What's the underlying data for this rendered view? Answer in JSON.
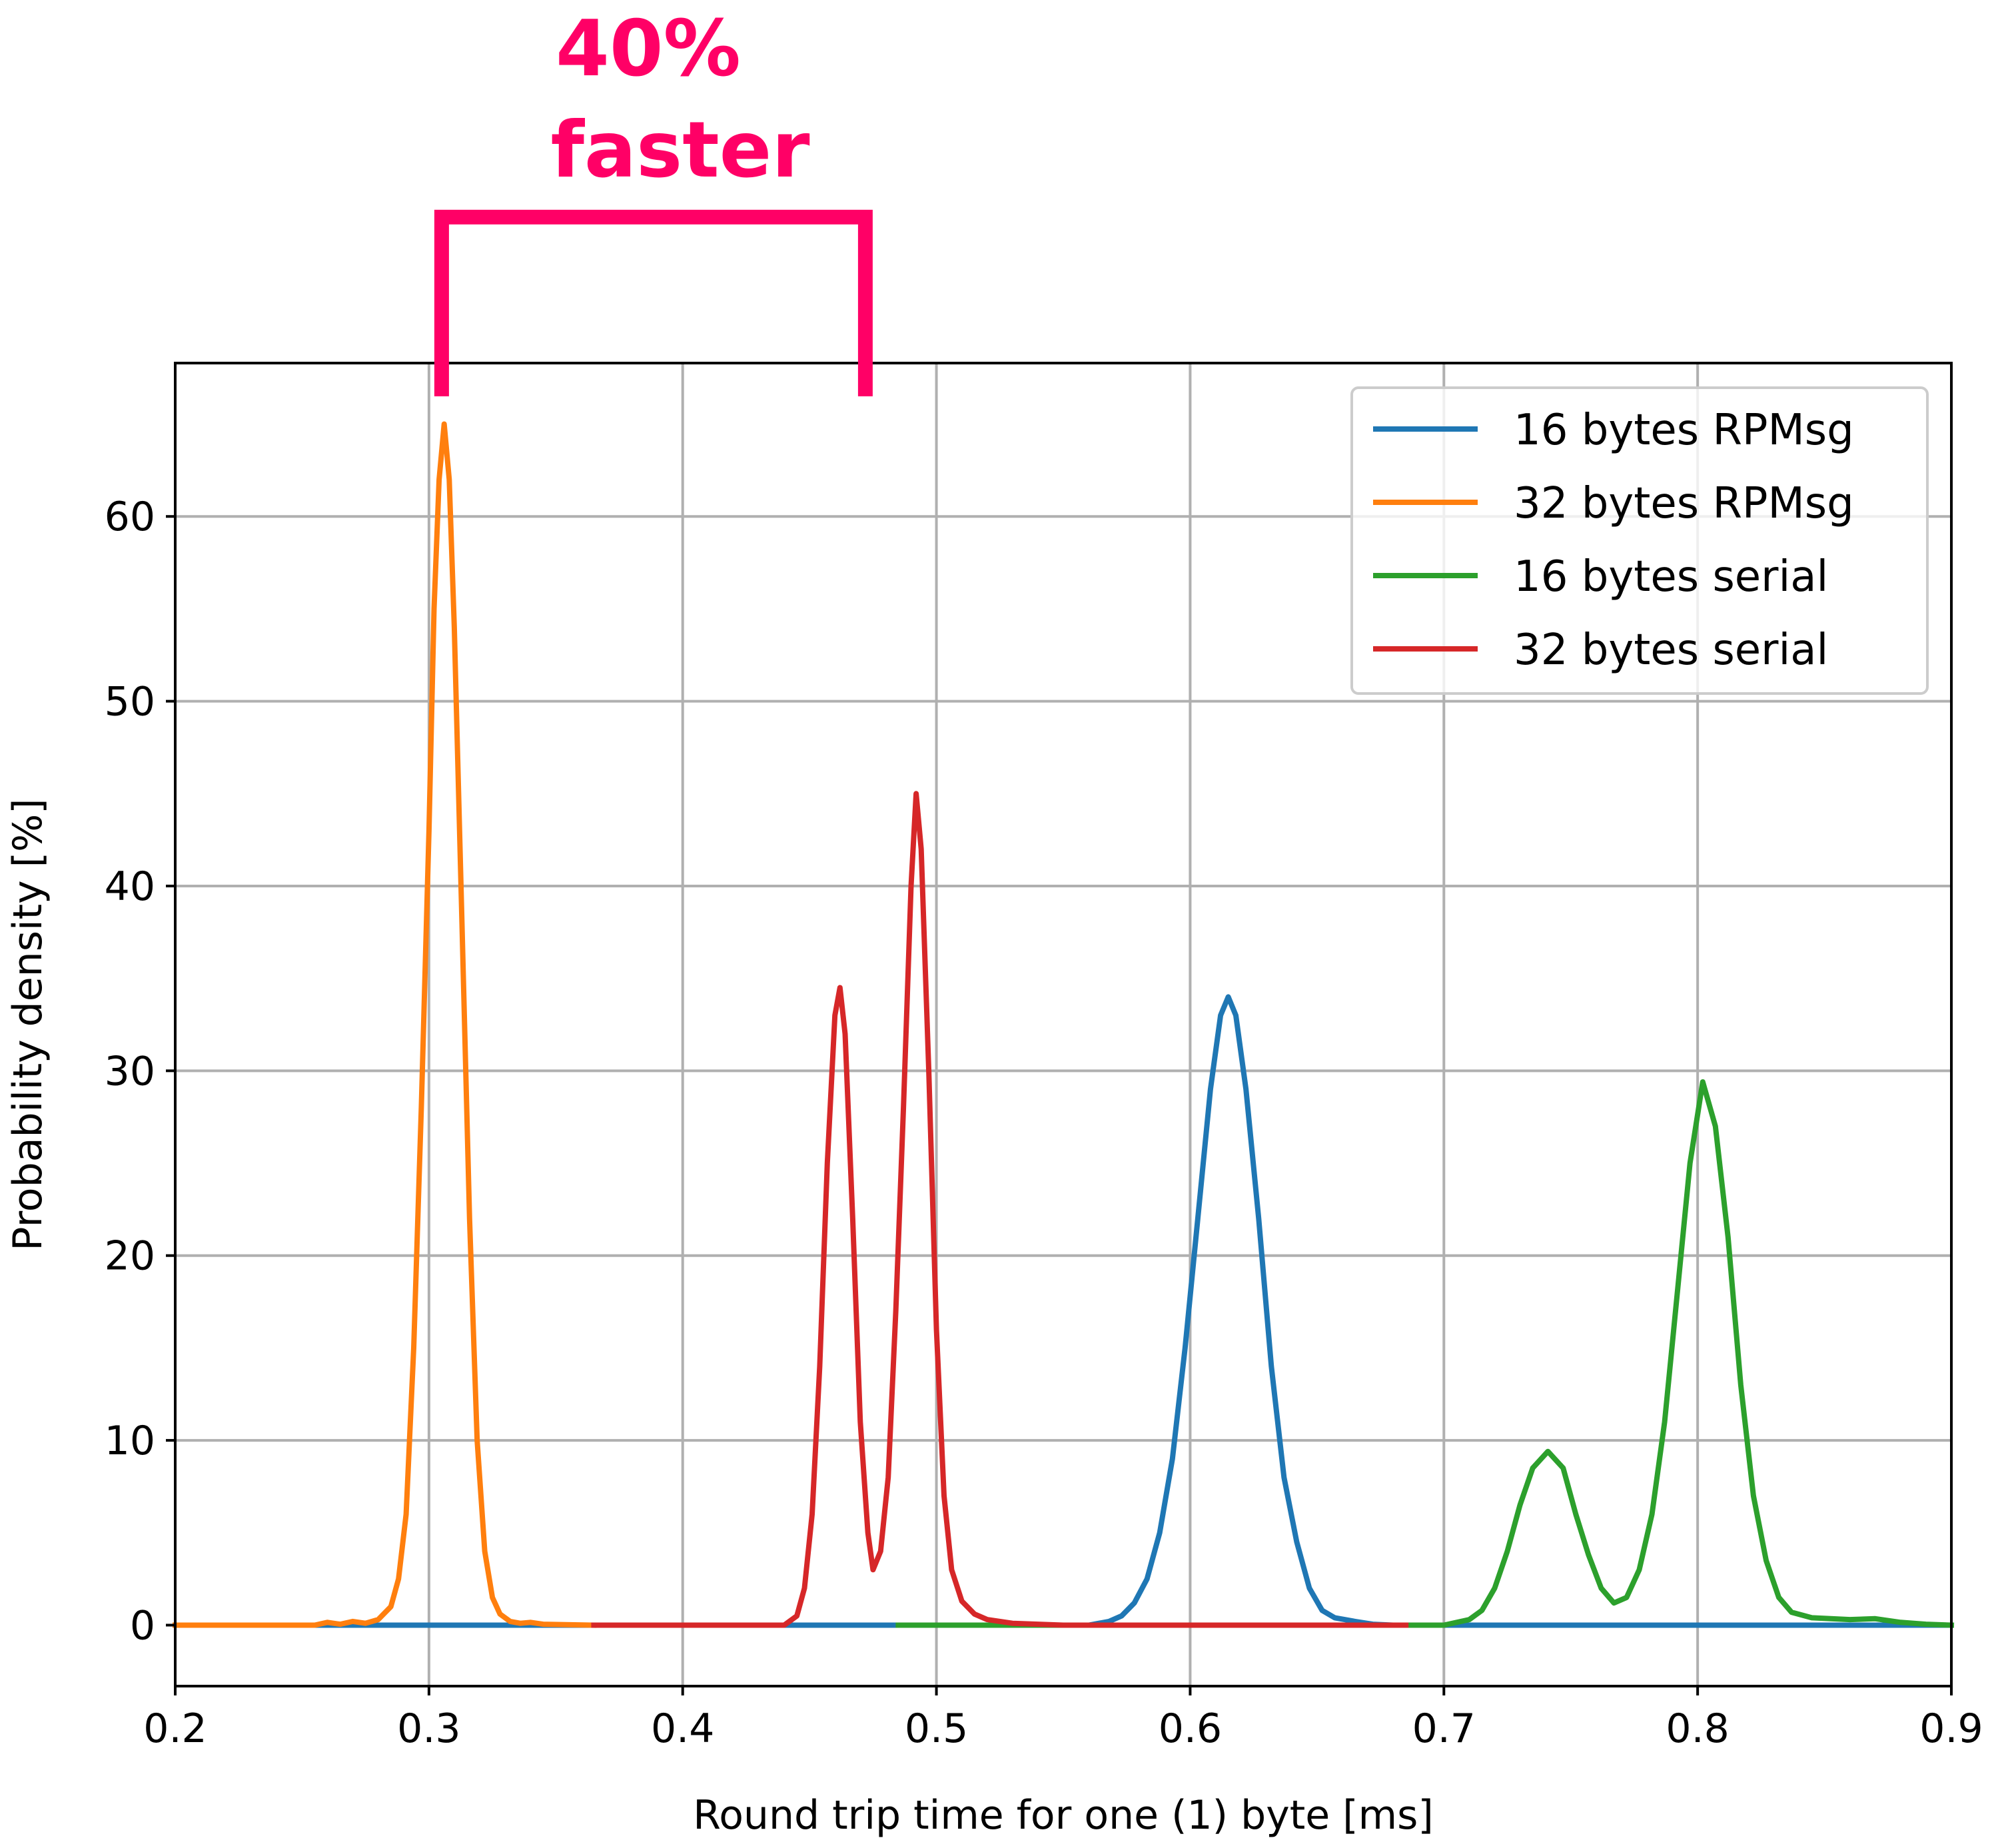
{
  "chart_data": {
    "type": "line",
    "xlabel": "Round trip time for one (1) byte [ms]",
    "ylabel": "Probability density [%]",
    "xlim": [
      0.2,
      0.9
    ],
    "ylim": [
      -3.3,
      68.3
    ],
    "x_ticks": [
      "0.2",
      "0.3",
      "0.4",
      "0.5",
      "0.6",
      "0.7",
      "0.8",
      "0.9"
    ],
    "y_ticks": [
      "0",
      "10",
      "20",
      "30",
      "40",
      "50",
      "60"
    ],
    "grid": true,
    "legend_position": "top-right",
    "annotation": {
      "text_line1": "40%",
      "text_line2": "faster",
      "color": "#FF0066",
      "bracket_x": [
        0.305,
        0.472
      ],
      "bracket_y_bottom": 66.5,
      "bracket_y_top": 76.2
    },
    "series": [
      {
        "name": "16 bytes RPMsg",
        "color": "#1f77b4",
        "points": [
          [
            0.2,
            0
          ],
          [
            0.56,
            0
          ],
          [
            0.568,
            0.2
          ],
          [
            0.573,
            0.5
          ],
          [
            0.578,
            1.2
          ],
          [
            0.583,
            2.5
          ],
          [
            0.588,
            5
          ],
          [
            0.593,
            9
          ],
          [
            0.598,
            15
          ],
          [
            0.603,
            22
          ],
          [
            0.608,
            29
          ],
          [
            0.612,
            33
          ],
          [
            0.615,
            34
          ],
          [
            0.618,
            33
          ],
          [
            0.622,
            29
          ],
          [
            0.627,
            22
          ],
          [
            0.632,
            14
          ],
          [
            0.637,
            8
          ],
          [
            0.642,
            4.5
          ],
          [
            0.647,
            2
          ],
          [
            0.652,
            0.8
          ],
          [
            0.657,
            0.4
          ],
          [
            0.665,
            0.2
          ],
          [
            0.672,
            0.05
          ],
          [
            0.68,
            0
          ],
          [
            0.9,
            0
          ]
        ]
      },
      {
        "name": "32 bytes RPMsg",
        "color": "#ff7f0e",
        "points": [
          [
            0.2,
            0
          ],
          [
            0.255,
            0
          ],
          [
            0.26,
            0.15
          ],
          [
            0.265,
            0.05
          ],
          [
            0.27,
            0.2
          ],
          [
            0.275,
            0.1
          ],
          [
            0.28,
            0.3
          ],
          [
            0.285,
            1
          ],
          [
            0.288,
            2.5
          ],
          [
            0.291,
            6
          ],
          [
            0.294,
            15
          ],
          [
            0.297,
            28
          ],
          [
            0.3,
            43
          ],
          [
            0.302,
            55
          ],
          [
            0.304,
            62
          ],
          [
            0.306,
            65
          ],
          [
            0.308,
            62
          ],
          [
            0.31,
            54
          ],
          [
            0.313,
            38
          ],
          [
            0.316,
            22
          ],
          [
            0.319,
            10
          ],
          [
            0.322,
            4
          ],
          [
            0.325,
            1.5
          ],
          [
            0.328,
            0.6
          ],
          [
            0.332,
            0.2
          ],
          [
            0.336,
            0.1
          ],
          [
            0.34,
            0.15
          ],
          [
            0.345,
            0.05
          ],
          [
            0.365,
            0
          ]
        ]
      },
      {
        "name": "16 bytes serial",
        "color": "#2ca02c",
        "points": [
          [
            0.485,
            0
          ],
          [
            0.7,
            0
          ],
          [
            0.71,
            0.3
          ],
          [
            0.715,
            0.8
          ],
          [
            0.72,
            2
          ],
          [
            0.725,
            4
          ],
          [
            0.73,
            6.5
          ],
          [
            0.735,
            8.5
          ],
          [
            0.741,
            9.4
          ],
          [
            0.747,
            8.5
          ],
          [
            0.752,
            6
          ],
          [
            0.757,
            3.8
          ],
          [
            0.762,
            2
          ],
          [
            0.767,
            1.2
          ],
          [
            0.772,
            1.5
          ],
          [
            0.777,
            3
          ],
          [
            0.782,
            6
          ],
          [
            0.787,
            11
          ],
          [
            0.792,
            18
          ],
          [
            0.797,
            25
          ],
          [
            0.802,
            29.4
          ],
          [
            0.807,
            27
          ],
          [
            0.812,
            21
          ],
          [
            0.817,
            13
          ],
          [
            0.822,
            7
          ],
          [
            0.827,
            3.5
          ],
          [
            0.832,
            1.5
          ],
          [
            0.837,
            0.7
          ],
          [
            0.845,
            0.4
          ],
          [
            0.86,
            0.3
          ],
          [
            0.87,
            0.35
          ],
          [
            0.88,
            0.15
          ],
          [
            0.89,
            0.05
          ],
          [
            0.9,
            0
          ]
        ]
      },
      {
        "name": "32 bytes serial",
        "color": "#d62728",
        "points": [
          [
            0.365,
            0
          ],
          [
            0.44,
            0
          ],
          [
            0.445,
            0.5
          ],
          [
            0.448,
            2
          ],
          [
            0.451,
            6
          ],
          [
            0.454,
            14
          ],
          [
            0.457,
            25
          ],
          [
            0.46,
            33
          ],
          [
            0.462,
            34.5
          ],
          [
            0.464,
            32
          ],
          [
            0.467,
            22
          ],
          [
            0.47,
            11
          ],
          [
            0.473,
            5
          ],
          [
            0.475,
            3
          ],
          [
            0.478,
            4
          ],
          [
            0.481,
            8
          ],
          [
            0.484,
            17
          ],
          [
            0.487,
            28
          ],
          [
            0.49,
            40
          ],
          [
            0.492,
            45
          ],
          [
            0.494,
            42
          ],
          [
            0.497,
            30
          ],
          [
            0.5,
            16
          ],
          [
            0.503,
            7
          ],
          [
            0.506,
            3
          ],
          [
            0.51,
            1.3
          ],
          [
            0.515,
            0.6
          ],
          [
            0.52,
            0.3
          ],
          [
            0.53,
            0.1
          ],
          [
            0.55,
            0
          ],
          [
            0.685,
            0
          ]
        ]
      }
    ]
  }
}
